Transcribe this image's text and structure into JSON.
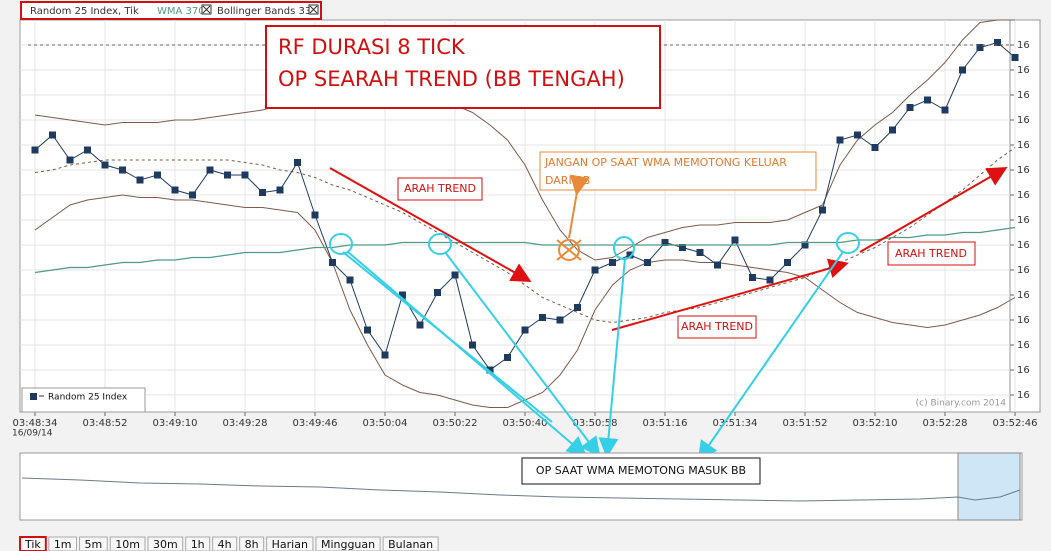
{
  "chart_data": {
    "type": "line",
    "title": "Random 25 Index, Tik",
    "date": "16/09/14",
    "watermark": "(c) Binary.com 2014",
    "grid": true,
    "legend": "lower left",
    "categories": [
      "03:48:34",
      null,
      null,
      null,
      "03:48:52",
      null,
      null,
      null,
      "03:49:10",
      null,
      null,
      null,
      "03:49:28",
      null,
      null,
      null,
      "03:49:46",
      null,
      null,
      null,
      "03:50:04",
      null,
      null,
      null,
      "03:50:22",
      null,
      null,
      null,
      "03:50:40",
      null,
      null,
      null,
      "03:50:58",
      null,
      null,
      null,
      "03:51:16",
      null,
      null,
      null,
      "03:51:34",
      null,
      null,
      null,
      "03:51:52",
      null,
      null,
      null,
      "03:52:10",
      null,
      null,
      null,
      "03:52:28",
      null,
      null,
      null,
      "03:52:46"
    ],
    "ylim": [
      -0.6,
      15
    ],
    "yticks": [
      {
        "value": 0,
        "label": "16"
      },
      {
        "value": 1,
        "label": "16"
      },
      {
        "value": 2,
        "label": "16"
      },
      {
        "value": 3,
        "label": "16"
      },
      {
        "value": 4,
        "label": "16"
      },
      {
        "value": 5,
        "label": "16"
      },
      {
        "value": 6,
        "label": "16"
      },
      {
        "value": 7,
        "label": "16"
      },
      {
        "value": 8,
        "label": "16"
      },
      {
        "value": 9,
        "label": "16"
      },
      {
        "value": 10,
        "label": "16"
      },
      {
        "value": 11,
        "label": "16"
      },
      {
        "value": 12,
        "label": "16"
      },
      {
        "value": 13,
        "label": "16"
      },
      {
        "value": 14,
        "label": "16"
      }
    ],
    "series": [
      {
        "name": "Random 25 Index",
        "color": "#1f3a5f",
        "markers": true,
        "values": [
          9.8,
          10.4,
          9.4,
          9.8,
          9.2,
          9.0,
          8.6,
          8.8,
          8.2,
          8.0,
          9.0,
          8.8,
          8.8,
          8.1,
          8.2,
          9.3,
          7.2,
          5.3,
          4.6,
          2.6,
          1.6,
          4.0,
          2.8,
          4.1,
          4.8,
          2.0,
          1.0,
          1.5,
          2.6,
          3.1,
          3.0,
          3.5,
          5.0,
          5.3,
          5.6,
          5.3,
          6.1,
          5.9,
          5.7,
          5.2,
          6.2,
          4.7,
          4.6,
          5.3,
          6.0,
          7.4,
          10.2,
          10.4,
          9.9,
          10.6,
          11.5,
          11.8,
          11.4,
          13.0,
          13.9,
          14.1,
          13.5
        ]
      },
      {
        "name": "WMA 370",
        "color": "#4f9a86",
        "markers": false,
        "values": [
          4.9,
          5.0,
          5.1,
          5.1,
          5.2,
          5.3,
          5.3,
          5.4,
          5.4,
          5.5,
          5.5,
          5.6,
          5.7,
          5.7,
          5.7,
          5.8,
          5.9,
          5.9,
          6.0,
          6.0,
          6.0,
          6.1,
          6.1,
          6.1,
          6.1,
          6.1,
          6.1,
          6.1,
          6.1,
          6.0,
          6.0,
          6.0,
          6.0,
          6.0,
          6.0,
          6.0,
          6.0,
          6.0,
          6.0,
          6.0,
          6.0,
          6.0,
          6.0,
          6.1,
          6.1,
          6.1,
          6.1,
          6.2,
          6.2,
          6.3,
          6.3,
          6.4,
          6.4,
          6.5,
          6.5,
          6.6,
          6.7
        ]
      }
    ],
    "bands": {
      "name": "Bollinger Bands 33",
      "color": "#7b5b4b",
      "upper": [
        11.2,
        11.1,
        11.0,
        10.9,
        10.8,
        10.9,
        10.9,
        10.9,
        11.0,
        11.0,
        11.1,
        11.2,
        11.3,
        11.4,
        11.6,
        11.8,
        12.0,
        12.1,
        12.1,
        12.0,
        11.9,
        12.0,
        11.9,
        11.8,
        11.6,
        11.3,
        10.8,
        10.2,
        9.2,
        7.8,
        6.6,
        5.8,
        5.4,
        5.5,
        5.9,
        6.3,
        6.5,
        6.7,
        6.8,
        6.8,
        6.9,
        6.9,
        6.9,
        7.0,
        7.3,
        7.6,
        9.2,
        10.2,
        10.8,
        11.3,
        12.0,
        12.6,
        13.3,
        14.2,
        14.9,
        15.0,
        15.0
      ],
      "middle": [
        8.9,
        9.0,
        9.2,
        9.3,
        9.4,
        9.4,
        9.4,
        9.4,
        9.4,
        9.4,
        9.4,
        9.4,
        9.3,
        9.2,
        9.0,
        8.9,
        8.7,
        8.4,
        8.2,
        7.9,
        7.6,
        7.3,
        6.9,
        6.5,
        6.1,
        5.7,
        5.3,
        4.9,
        4.4,
        3.9,
        3.6,
        3.3,
        3.0,
        2.9,
        3.0,
        3.1,
        3.3,
        3.4,
        3.5,
        3.7,
        3.9,
        4.1,
        4.3,
        4.5,
        4.7,
        5.0,
        5.3,
        5.6,
        5.9,
        6.3,
        6.7,
        7.2,
        7.7,
        8.2,
        8.8,
        9.4,
        9.9
      ],
      "lower": [
        6.6,
        7.1,
        7.6,
        7.8,
        7.9,
        8.0,
        7.9,
        7.9,
        7.8,
        7.8,
        7.7,
        7.6,
        7.5,
        7.5,
        7.4,
        7.3,
        6.6,
        5.3,
        3.4,
        2.0,
        0.8,
        0.4,
        0.1,
        0.0,
        -0.2,
        -0.4,
        -0.5,
        -0.5,
        -0.2,
        0.1,
        0.8,
        1.8,
        3.4,
        4.4,
        5.0,
        5.3,
        5.4,
        5.4,
        5.3,
        5.3,
        5.2,
        5.1,
        5.0,
        4.9,
        4.7,
        4.2,
        3.7,
        3.3,
        3.1,
        2.9,
        2.8,
        2.7,
        2.8,
        3.0,
        3.2,
        3.5,
        3.9
      ]
    },
    "annotations": {
      "box_title": [
        "RF DURASI 8 TICK",
        "OP SEARAH TREND (BB TENGAH)"
      ],
      "warning": [
        "JANGAN OP SAAT WMA MEMOTONG KELUAR",
        "DARI BB"
      ],
      "trend": [
        "ARAH TREND",
        "ARAH TREND",
        "ARAH TREND"
      ],
      "entry": "OP SAAT WMA MEMOTONG MASUK BB"
    }
  },
  "toolbar": [
    "Tik",
    "1m",
    "5m",
    "10m",
    "30m",
    "1h",
    "4h",
    "8h",
    "Harian",
    "Mingguan",
    "Bulanan"
  ]
}
